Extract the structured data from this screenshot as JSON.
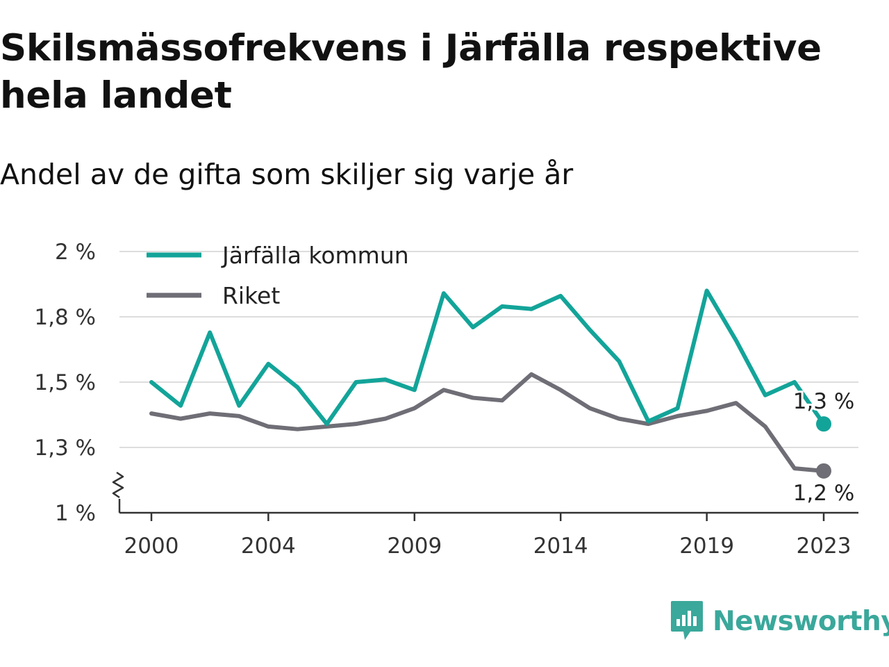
{
  "title": "Skilsmässofrekvens i Järfälla respektive hela landet",
  "subtitle": "Andel av de gifta som skiljer sig varje år",
  "brand": "Newsworthy",
  "colors": {
    "jarfalla": "#13a499",
    "riket": "#6f6e76",
    "grid": "#dddddd",
    "axis": "#333333"
  },
  "chart_data": {
    "type": "line",
    "x": [
      2000,
      2001,
      2002,
      2003,
      2004,
      2005,
      2006,
      2007,
      2008,
      2009,
      2010,
      2011,
      2012,
      2013,
      2014,
      2015,
      2016,
      2017,
      2018,
      2019,
      2020,
      2021,
      2022,
      2023
    ],
    "x_ticks": [
      2000,
      2004,
      2009,
      2014,
      2019,
      2023
    ],
    "x_tick_labels": [
      "2000",
      "2004",
      "2009",
      "2014",
      "2019",
      "2023"
    ],
    "ylim": [
      1.0,
      2.0
    ],
    "y_axis_break": true,
    "y_ticks": [
      1.0,
      1.25,
      1.5,
      1.75,
      2.0
    ],
    "y_tick_labels": [
      "1 %",
      "1,3 %",
      "1,5 %",
      "1,8 %",
      "2 %"
    ],
    "legend_position": "top-left",
    "series": [
      {
        "name": "Järfälla kommun",
        "color": "#13a499",
        "values": [
          1.5,
          1.41,
          1.69,
          1.41,
          1.57,
          1.48,
          1.34,
          1.5,
          1.51,
          1.47,
          1.84,
          1.71,
          1.79,
          1.78,
          1.83,
          1.7,
          1.58,
          1.35,
          1.4,
          1.85,
          1.66,
          1.45,
          1.5,
          1.34
        ],
        "end_label": "1,3 %"
      },
      {
        "name": "Riket",
        "color": "#6f6e76",
        "values": [
          1.38,
          1.36,
          1.38,
          1.37,
          1.33,
          1.32,
          1.33,
          1.34,
          1.36,
          1.4,
          1.47,
          1.44,
          1.43,
          1.53,
          1.47,
          1.4,
          1.36,
          1.34,
          1.37,
          1.39,
          1.42,
          1.33,
          1.17,
          1.16
        ],
        "end_label": "1,2 %"
      }
    ]
  }
}
